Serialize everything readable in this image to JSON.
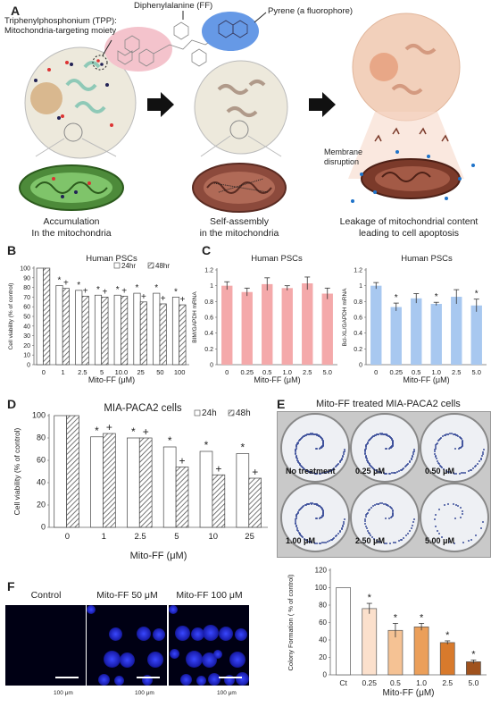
{
  "panels": {
    "A": {
      "letter": "A",
      "tpp_label": "Triphenylphosphonium (TPP):\nMitochondria-targeting moiety",
      "tpp_line1": "Triphenylphosphonium (TPP):",
      "tpp_line2": "Mitochondria-targeting moiety",
      "ff_label": "Diphenylalanine (FF)",
      "pyrene_label": "Pyrene (a fluorophore)",
      "membrane_label1": "Membrane",
      "membrane_label2": "disruption",
      "step1_line1": "Accumulation",
      "step1_line2": "In the mitochondria",
      "step2_line1": "Self-assembly",
      "step2_line2": "in the mitochondria",
      "step3_line1": "Leakage of mitochondrial content",
      "step3_line2": "leading to cell apoptosis"
    },
    "B": {
      "letter": "B"
    },
    "C": {
      "letter": "C"
    },
    "D": {
      "letter": "D"
    },
    "E": {
      "letter": "E",
      "title": "Mito-FF treated MIA-PACA2 cells",
      "wells": [
        "No treatment",
        "0.25 μM",
        "0.50 μM",
        "1.00 μM",
        "2.50 μM",
        "5.00 μM"
      ]
    },
    "F": {
      "letter": "F",
      "titles": [
        "Control",
        "Mito-FF 50 μM",
        "Mito-FF 100 μM"
      ],
      "scalebar": "100 μm"
    }
  },
  "chart_data": [
    {
      "id": "B",
      "type": "bar",
      "title": "Human PSCs",
      "xlabel": "Mito-FF (μM)",
      "ylabel": "Cell viability (% of control)",
      "categories": [
        "0",
        "1",
        "2.5",
        "5",
        "10.0",
        "25",
        "50",
        "100"
      ],
      "yticks": [
        "100",
        "90",
        "80",
        "70",
        "60",
        "50",
        "40",
        "30",
        "20",
        "10",
        "0"
      ],
      "ylim": [
        0,
        100
      ],
      "legend": [
        "24hr",
        "48hr"
      ],
      "series": [
        {
          "name": "24hr",
          "values": [
            100,
            82,
            77,
            72,
            72,
            74,
            74,
            70
          ]
        },
        {
          "name": "48hr",
          "values": [
            100,
            79,
            71,
            70,
            71,
            65,
            63,
            62
          ]
        }
      ],
      "markers": [
        [
          "",
          ""
        ],
        [
          "*",
          "+"
        ],
        [
          "*",
          "+"
        ],
        [
          "*",
          "+"
        ],
        [
          "*",
          "+"
        ],
        [
          "*",
          "+"
        ],
        [
          "*",
          "+"
        ],
        [
          "*",
          "+"
        ]
      ]
    },
    {
      "id": "C1",
      "type": "bar",
      "title": "Human PSCs",
      "xlabel": "Mito-FF (μM)",
      "ylabel": "BIM/GAPDH mRNA",
      "categories": [
        "0",
        "0.25",
        "0.5",
        "1.0",
        "2.5",
        "5.0"
      ],
      "yticks": [
        "1.2",
        "1",
        "0.8",
        "0.6",
        "0.4",
        "0.2",
        "0"
      ],
      "ylim": [
        0,
        1.2
      ],
      "values": [
        1.0,
        0.92,
        1.02,
        0.97,
        1.03,
        0.9
      ],
      "errors": [
        0.05,
        0.05,
        0.08,
        0.03,
        0.08,
        0.07
      ],
      "markers": [
        "",
        "",
        "",
        "",
        "",
        ""
      ],
      "color": "#f4a9aa"
    },
    {
      "id": "C2",
      "type": "bar",
      "title": "Human PSCs",
      "xlabel": "Mito-FF (μM)",
      "ylabel": "Bcl-XL/GAPDH mRNA",
      "categories": [
        "0",
        "0.25",
        "0.5",
        "1.0",
        "2.5",
        "5.0"
      ],
      "yticks": [
        "1.2",
        "1",
        "0.8",
        "0.6",
        "0.4",
        "0.2",
        "0"
      ],
      "ylim": [
        0,
        1.2
      ],
      "values": [
        1.0,
        0.73,
        0.84,
        0.77,
        0.86,
        0.75
      ],
      "errors": [
        0.04,
        0.05,
        0.06,
        0.02,
        0.09,
        0.08
      ],
      "markers": [
        "",
        "*",
        "",
        "*",
        "",
        "*"
      ],
      "color": "#a8c8f0"
    },
    {
      "id": "D",
      "type": "bar",
      "title": "MIA-PACA2 cells",
      "xlabel": "Mito-FF (μM)",
      "ylabel": "Cell viability (% of control)",
      "categories": [
        "0",
        "1",
        "2.5",
        "5",
        "10",
        "25"
      ],
      "yticks": [
        "100",
        "80",
        "60",
        "40",
        "20",
        "0"
      ],
      "ylim": [
        0,
        100
      ],
      "legend": [
        "24h",
        "48h"
      ],
      "series": [
        {
          "name": "24h",
          "values": [
            100,
            81,
            80,
            72,
            68,
            66
          ]
        },
        {
          "name": "48h",
          "values": [
            100,
            84,
            80,
            54,
            47,
            44
          ]
        }
      ],
      "markers": [
        [
          "",
          ""
        ],
        [
          "*",
          "+"
        ],
        [
          "*",
          "+"
        ],
        [
          "*",
          "+"
        ],
        [
          "*",
          "+"
        ],
        [
          "*",
          "+"
        ]
      ]
    },
    {
      "id": "E",
      "type": "bar",
      "title": "",
      "xlabel": "Mito-FF (μM)",
      "ylabel": "Colony Formation ( % of control)",
      "categories": [
        "Ct",
        "0.25",
        "0.5",
        "1.0",
        "2.5",
        "5.0"
      ],
      "yticks": [
        "120",
        "100",
        "80",
        "60",
        "40",
        "20",
        "0"
      ],
      "ylim": [
        0,
        120
      ],
      "values": [
        100,
        76,
        51,
        55,
        37,
        15
      ],
      "errors": [
        0,
        6,
        8,
        4,
        2,
        2
      ],
      "markers": [
        "",
        "*",
        "*",
        "*",
        "*",
        "*"
      ],
      "colors": [
        "#ffffff",
        "#fbe0cc",
        "#f5c294",
        "#eb9f5a",
        "#d87a2c",
        "#a0521d"
      ]
    }
  ]
}
